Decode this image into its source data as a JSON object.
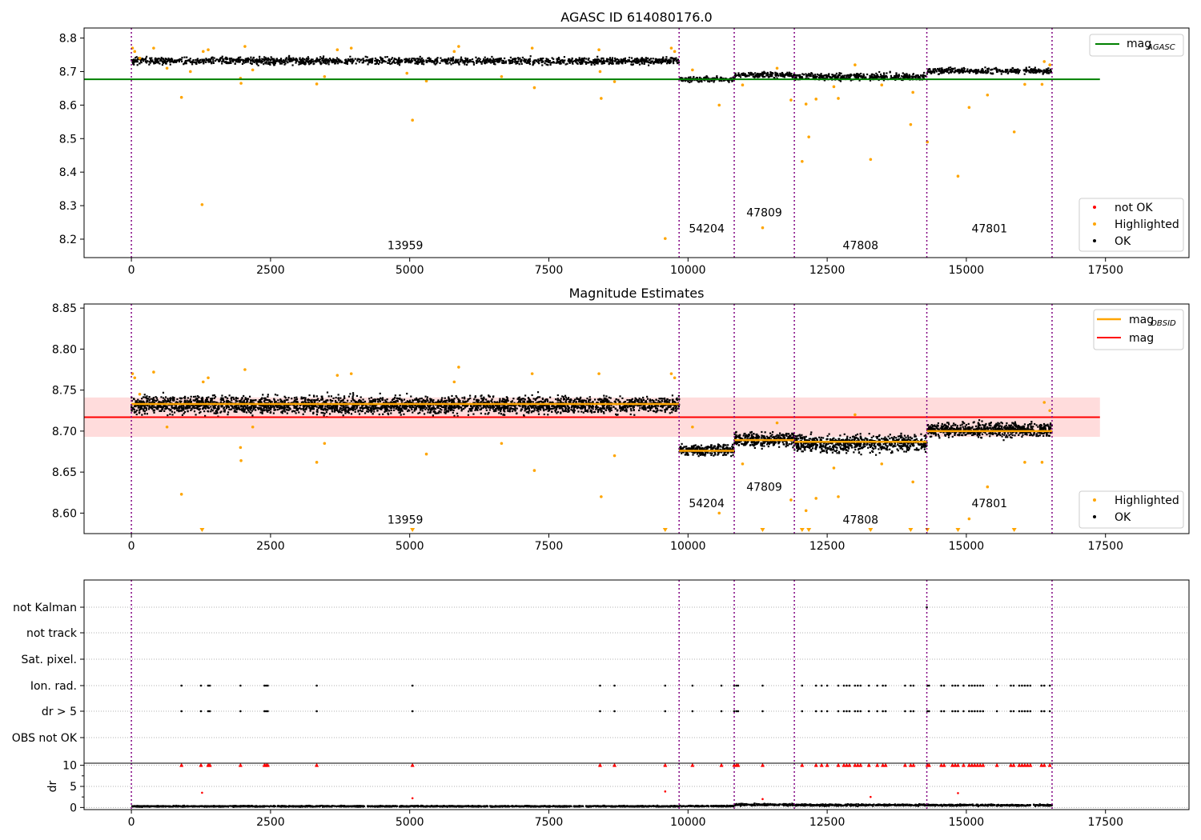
{
  "chart_data": [
    {
      "type": "scatter",
      "title": "AGASC ID 614080176.0",
      "xlim": [
        -850,
        19000
      ],
      "ylim": [
        8.145,
        8.83
      ],
      "x_ticks": [
        0,
        2500,
        5000,
        7500,
        10000,
        12500,
        15000,
        17500
      ],
      "x_tick_labels": [
        "0",
        "2500",
        "5000",
        "7500",
        "10000",
        "12500",
        "15000",
        "17500"
      ],
      "y_ticks": [
        8.2,
        8.3,
        8.4,
        8.5,
        8.6,
        8.7,
        8.8
      ],
      "y_tick_labels": [
        "8.2",
        "8.3",
        "8.4",
        "8.5",
        "8.6",
        "8.7",
        "8.8"
      ],
      "obs_boundaries": [
        0,
        9840,
        10830,
        11910,
        14290,
        16540
      ],
      "obsids": [
        {
          "label": "13959",
          "x": 4920,
          "y": 8.17
        },
        {
          "label": "54204",
          "x": 10335,
          "y": 8.22
        },
        {
          "label": "47809",
          "x": 11370,
          "y": 8.268
        },
        {
          "label": "47808",
          "x": 13100,
          "y": 8.17
        },
        {
          "label": "47801",
          "x": 15415,
          "y": 8.22
        }
      ],
      "segments_ok": [
        {
          "x": [
            0,
            9840
          ],
          "mean": 8.732,
          "spread": 0.012
        },
        {
          "x": [
            9840,
            10830
          ],
          "mean": 8.677,
          "spread": 0.008
        },
        {
          "x": [
            10830,
            11910
          ],
          "mean": 8.69,
          "spread": 0.01
        },
        {
          "x": [
            11910,
            14290
          ],
          "mean": 8.685,
          "spread": 0.012
        },
        {
          "x": [
            14290,
            16540
          ],
          "mean": 8.702,
          "spread": 0.01
        }
      ],
      "highlighted_points": [
        [
          20,
          8.77
        ],
        [
          60,
          8.76
        ],
        [
          150,
          8.74
        ],
        [
          400,
          8.77
        ],
        [
          640,
          8.71
        ],
        [
          900,
          8.623
        ],
        [
          1060,
          8.7
        ],
        [
          1270,
          8.303
        ],
        [
          1290,
          8.76
        ],
        [
          1380,
          8.765
        ],
        [
          1960,
          8.68
        ],
        [
          1970,
          8.665
        ],
        [
          2040,
          8.775
        ],
        [
          2180,
          8.705
        ],
        [
          3330,
          8.663
        ],
        [
          3470,
          8.685
        ],
        [
          3700,
          8.765
        ],
        [
          3950,
          8.77
        ],
        [
          4950,
          8.695
        ],
        [
          5050,
          8.555
        ],
        [
          5300,
          8.672
        ],
        [
          5800,
          8.76
        ],
        [
          5880,
          8.775
        ],
        [
          6650,
          8.685
        ],
        [
          7240,
          8.652
        ],
        [
          7200,
          8.77
        ],
        [
          8420,
          8.7
        ],
        [
          8440,
          8.62
        ],
        [
          8680,
          8.67
        ],
        [
          8400,
          8.765
        ],
        [
          9590,
          8.202
        ],
        [
          9700,
          8.77
        ],
        [
          9760,
          8.76
        ],
        [
          10080,
          8.705
        ],
        [
          10560,
          8.6
        ],
        [
          10980,
          8.66
        ],
        [
          11340,
          8.234
        ],
        [
          11600,
          8.71
        ],
        [
          11850,
          8.615
        ],
        [
          12050,
          8.432
        ],
        [
          12120,
          8.603
        ],
        [
          12170,
          8.505
        ],
        [
          12300,
          8.618
        ],
        [
          12620,
          8.655
        ],
        [
          12700,
          8.62
        ],
        [
          13000,
          8.72
        ],
        [
          13280,
          8.438
        ],
        [
          13480,
          8.66
        ],
        [
          14000,
          8.542
        ],
        [
          14040,
          8.638
        ],
        [
          14300,
          8.49
        ],
        [
          14850,
          8.388
        ],
        [
          15050,
          8.593
        ],
        [
          15380,
          8.63
        ],
        [
          15860,
          8.52
        ],
        [
          16050,
          8.662
        ],
        [
          16360,
          8.662
        ],
        [
          16400,
          8.73
        ],
        [
          16500,
          8.72
        ]
      ],
      "series": [
        {
          "name": "not OK",
          "color": "#ff0000"
        },
        {
          "name": "Highlighted",
          "color": "#ffa500"
        },
        {
          "name": "OK",
          "color": "#000000"
        }
      ],
      "reference_line": {
        "name": "mag",
        "subscript": "AGASC",
        "value": 8.677,
        "x": [
          -850,
          17400
        ],
        "color": "#008000"
      },
      "legend_upper": "top-right",
      "legend_lower": "bottom-right"
    },
    {
      "type": "scatter",
      "title": "Magnitude Estimates",
      "xlim": [
        -850,
        19000
      ],
      "ylim": [
        8.575,
        8.855
      ],
      "x_ticks": [
        0,
        2500,
        5000,
        7500,
        10000,
        12500,
        15000,
        17500
      ],
      "x_tick_labels": [
        "0",
        "2500",
        "5000",
        "7500",
        "10000",
        "12500",
        "15000",
        "17500"
      ],
      "y_ticks": [
        8.6,
        8.65,
        8.7,
        8.75,
        8.8,
        8.85
      ],
      "y_tick_labels": [
        "8.60",
        "8.65",
        "8.70",
        "8.75",
        "8.80",
        "8.85"
      ],
      "obs_boundaries": [
        0,
        9840,
        10830,
        11910,
        14290,
        16540
      ],
      "obsids": [
        {
          "label": "13959",
          "x": 4920,
          "y": 8.587
        },
        {
          "label": "54204",
          "x": 10335,
          "y": 8.607
        },
        {
          "label": "47809",
          "x": 11370,
          "y": 8.627
        },
        {
          "label": "47808",
          "x": 13100,
          "y": 8.587
        },
        {
          "label": "47801",
          "x": 15415,
          "y": 8.607
        }
      ],
      "segments_ok": [
        {
          "x": [
            0,
            9840
          ],
          "mean": 8.732,
          "spread": 0.012
        },
        {
          "x": [
            9840,
            10830
          ],
          "mean": 8.677,
          "spread": 0.008
        },
        {
          "x": [
            10830,
            11910
          ],
          "mean": 8.69,
          "spread": 0.01
        },
        {
          "x": [
            11910,
            14290
          ],
          "mean": 8.685,
          "spread": 0.012
        },
        {
          "x": [
            14290,
            16540
          ],
          "mean": 8.702,
          "spread": 0.01
        }
      ],
      "obsid_means": [
        {
          "x": [
            0,
            9840
          ],
          "value": 8.733
        },
        {
          "x": [
            9840,
            10830
          ],
          "value": 8.676
        },
        {
          "x": [
            10830,
            11910
          ],
          "value": 8.689
        },
        {
          "x": [
            11910,
            14290
          ],
          "value": 8.687
        },
        {
          "x": [
            14290,
            16540
          ],
          "value": 8.7
        }
      ],
      "mag": {
        "value": 8.717,
        "band": [
          8.693,
          8.741
        ],
        "x": [
          -850,
          17400
        ]
      },
      "highlighted_points": [
        [
          20,
          8.77
        ],
        [
          60,
          8.765
        ],
        [
          150,
          8.745
        ],
        [
          400,
          8.772
        ],
        [
          640,
          8.705
        ],
        [
          900,
          8.623
        ],
        [
          1290,
          8.76
        ],
        [
          1380,
          8.765
        ],
        [
          1960,
          8.68
        ],
        [
          1970,
          8.664
        ],
        [
          2040,
          8.775
        ],
        [
          2180,
          8.705
        ],
        [
          3330,
          8.662
        ],
        [
          3470,
          8.685
        ],
        [
          3700,
          8.768
        ],
        [
          3950,
          8.77
        ],
        [
          5300,
          8.672
        ],
        [
          5800,
          8.76
        ],
        [
          5880,
          8.778
        ],
        [
          6650,
          8.685
        ],
        [
          7240,
          8.652
        ],
        [
          7200,
          8.77
        ],
        [
          8440,
          8.62
        ],
        [
          8680,
          8.67
        ],
        [
          8400,
          8.77
        ],
        [
          9700,
          8.77
        ],
        [
          9760,
          8.765
        ],
        [
          10080,
          8.705
        ],
        [
          10560,
          8.6
        ],
        [
          10980,
          8.66
        ],
        [
          11600,
          8.71
        ],
        [
          11850,
          8.616
        ],
        [
          12120,
          8.603
        ],
        [
          12300,
          8.618
        ],
        [
          12620,
          8.655
        ],
        [
          12700,
          8.62
        ],
        [
          13000,
          8.72
        ],
        [
          13480,
          8.66
        ],
        [
          14040,
          8.638
        ],
        [
          15050,
          8.593
        ],
        [
          15380,
          8.632
        ],
        [
          16050,
          8.662
        ],
        [
          16360,
          8.662
        ],
        [
          16400,
          8.735
        ],
        [
          16500,
          8.725
        ]
      ],
      "clipped_points_x": [
        1270,
        5050,
        9590,
        11340,
        12050,
        12170,
        13280,
        14000,
        14300,
        14850,
        15860
      ],
      "series": [
        {
          "name": "Highlighted",
          "color": "#ffa500"
        },
        {
          "name": "OK",
          "color": "#000000"
        }
      ],
      "lines": [
        {
          "name": "mag",
          "subscript": "OBSID",
          "color": "#ffa500"
        },
        {
          "name": "mag",
          "color": "#ff0000",
          "band_color": "#ffdcdc"
        }
      ],
      "legend_upper": "top-right",
      "legend_lower": "bottom-right"
    },
    {
      "type": "scatter",
      "xlim": [
        -850,
        19000
      ],
      "categories": [
        "not Kalman",
        "not track",
        "Sat. pixel.",
        "Ion. rad.",
        "dr > 5",
        "OBS not OK"
      ],
      "flag_events": [
        {
          "flag": "Ion. rad.",
          "x": [
            900,
            1250,
            1380,
            1410,
            1960,
            2390,
            2420,
            2450,
            3330,
            5050,
            8420,
            8680,
            9590,
            10080,
            10600,
            10830,
            10870,
            10900,
            11340,
            12050,
            12300,
            12400,
            12500,
            12700,
            12800,
            12850,
            12900,
            13000,
            13050,
            13100,
            13250,
            13400,
            13500,
            13550,
            13900,
            14000,
            14050,
            14300,
            14330,
            14550,
            14600,
            14750,
            14800,
            14850,
            14950,
            15050,
            15100,
            15150,
            15200,
            15250,
            15300,
            15550,
            15800,
            15850,
            15950,
            16000,
            16050,
            16100,
            16150,
            16350,
            16400,
            16500
          ]
        },
        {
          "flag": "dr > 5",
          "x": [
            900,
            1250,
            1380,
            1410,
            1960,
            2390,
            2420,
            2450,
            3330,
            5050,
            8420,
            8680,
            9590,
            10080,
            10600,
            10830,
            10870,
            10900,
            11340,
            12050,
            12300,
            12400,
            12500,
            12700,
            12800,
            12850,
            12900,
            13000,
            13050,
            13100,
            13250,
            13400,
            13500,
            13550,
            13900,
            14000,
            14050,
            14300,
            14330,
            14550,
            14600,
            14750,
            14800,
            14850,
            14950,
            15050,
            15100,
            15150,
            15200,
            15250,
            15300,
            15550,
            15800,
            15850,
            15950,
            16000,
            16050,
            16100,
            16150,
            16350,
            16400,
            16500
          ]
        },
        {
          "flag": "not Kalman",
          "x": [
            14290
          ]
        }
      ],
      "obs_boundaries": [
        0,
        9840,
        10830,
        11910,
        14290,
        16540
      ]
    },
    {
      "type": "scatter",
      "ylabel": "dr",
      "xlim": [
        -850,
        19000
      ],
      "ylim": [
        -0.5,
        10.5
      ],
      "x_ticks": [
        0,
        2500,
        5000,
        7500,
        10000,
        12500,
        15000,
        17500
      ],
      "x_tick_labels": [
        "0",
        "2500",
        "5000",
        "7500",
        "10000",
        "12500",
        "15000",
        "17500"
      ],
      "y_ticks": [
        0,
        5,
        10
      ],
      "y_tick_labels": [
        "0",
        "5",
        "10"
      ],
      "obs_boundaries": [
        0,
        9840,
        10830,
        11910,
        14290,
        16540
      ],
      "segments_ok": [
        {
          "x": [
            0,
            9840
          ],
          "mean": 0.3,
          "spread": 0.15
        },
        {
          "x": [
            9840,
            10830
          ],
          "mean": 0.35,
          "spread": 0.15
        },
        {
          "x": [
            10830,
            11910
          ],
          "mean": 0.7,
          "spread": 0.3
        },
        {
          "x": [
            11910,
            14290
          ],
          "mean": 0.6,
          "spread": 0.25
        },
        {
          "x": [
            14290,
            16540
          ],
          "mean": 0.55,
          "spread": 0.2
        }
      ],
      "outlier_points": [
        [
          1270,
          3.5
        ],
        [
          5050,
          2.2
        ],
        [
          9590,
          3.8
        ],
        [
          11340,
          2.0
        ],
        [
          13280,
          2.5
        ],
        [
          14850,
          3.4
        ]
      ],
      "clipped_points_x": [
        900,
        1250,
        1380,
        1410,
        1960,
        2390,
        2420,
        2450,
        3330,
        5050,
        8420,
        8680,
        9590,
        10080,
        10600,
        10830,
        10870,
        10900,
        11340,
        12050,
        12300,
        12400,
        12500,
        12700,
        12800,
        12850,
        12900,
        13000,
        13050,
        13100,
        13250,
        13400,
        13500,
        13550,
        13900,
        14000,
        14050,
        14300,
        14330,
        14550,
        14600,
        14750,
        14800,
        14850,
        14950,
        15050,
        15100,
        15150,
        15200,
        15250,
        15300,
        15550,
        15800,
        15850,
        15950,
        16000,
        16050,
        16100,
        16150,
        16350,
        16400,
        16500
      ]
    }
  ],
  "colors": {
    "ok": "#000000",
    "highlighted": "#ffa500",
    "not_ok": "#ff0000",
    "agasc_line": "#008000",
    "mag_line": "#ff0000",
    "mag_band": "#ffdcdc",
    "obsid_line": "#ffa500",
    "obs_boundary": "#800080",
    "flag_grid": "#b0b0b0"
  }
}
